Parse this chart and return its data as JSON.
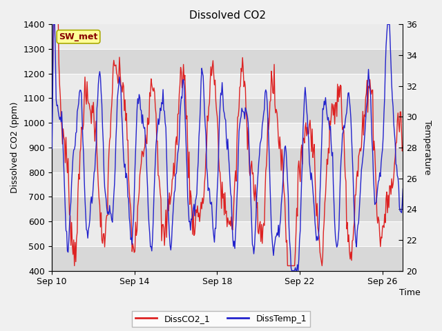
{
  "title": "Dissolved CO2",
  "xlabel": "Time",
  "ylabel_left": "Dissolved CO2 (ppm)",
  "ylabel_right": "Temperature",
  "ylim_left": [
    400,
    1400
  ],
  "ylim_right": [
    20,
    36
  ],
  "yticks_left": [
    400,
    500,
    600,
    700,
    800,
    900,
    1000,
    1100,
    1200,
    1300,
    1400
  ],
  "yticks_right": [
    20,
    22,
    24,
    26,
    28,
    30,
    32,
    34,
    36
  ],
  "fig_bg_color": "#f0f0f0",
  "stripe_light": "#ebebeb",
  "stripe_dark": "#d8d8d8",
  "line_color_co2": "#dd2222",
  "line_color_temp": "#2222cc",
  "legend_label_co2": "DissCO2_1",
  "legend_label_temp": "DissTemp_1",
  "annotation_label": "SW_met",
  "annotation_bg": "#ffff99",
  "annotation_border": "#aaaa00",
  "xtick_labels": [
    "Sep 10",
    "Sep 14",
    "Sep 18",
    "Sep 22",
    "Sep 26"
  ],
  "xtick_positions": [
    0,
    4,
    8,
    12,
    16
  ],
  "n_days": 17,
  "n_pts": 500
}
